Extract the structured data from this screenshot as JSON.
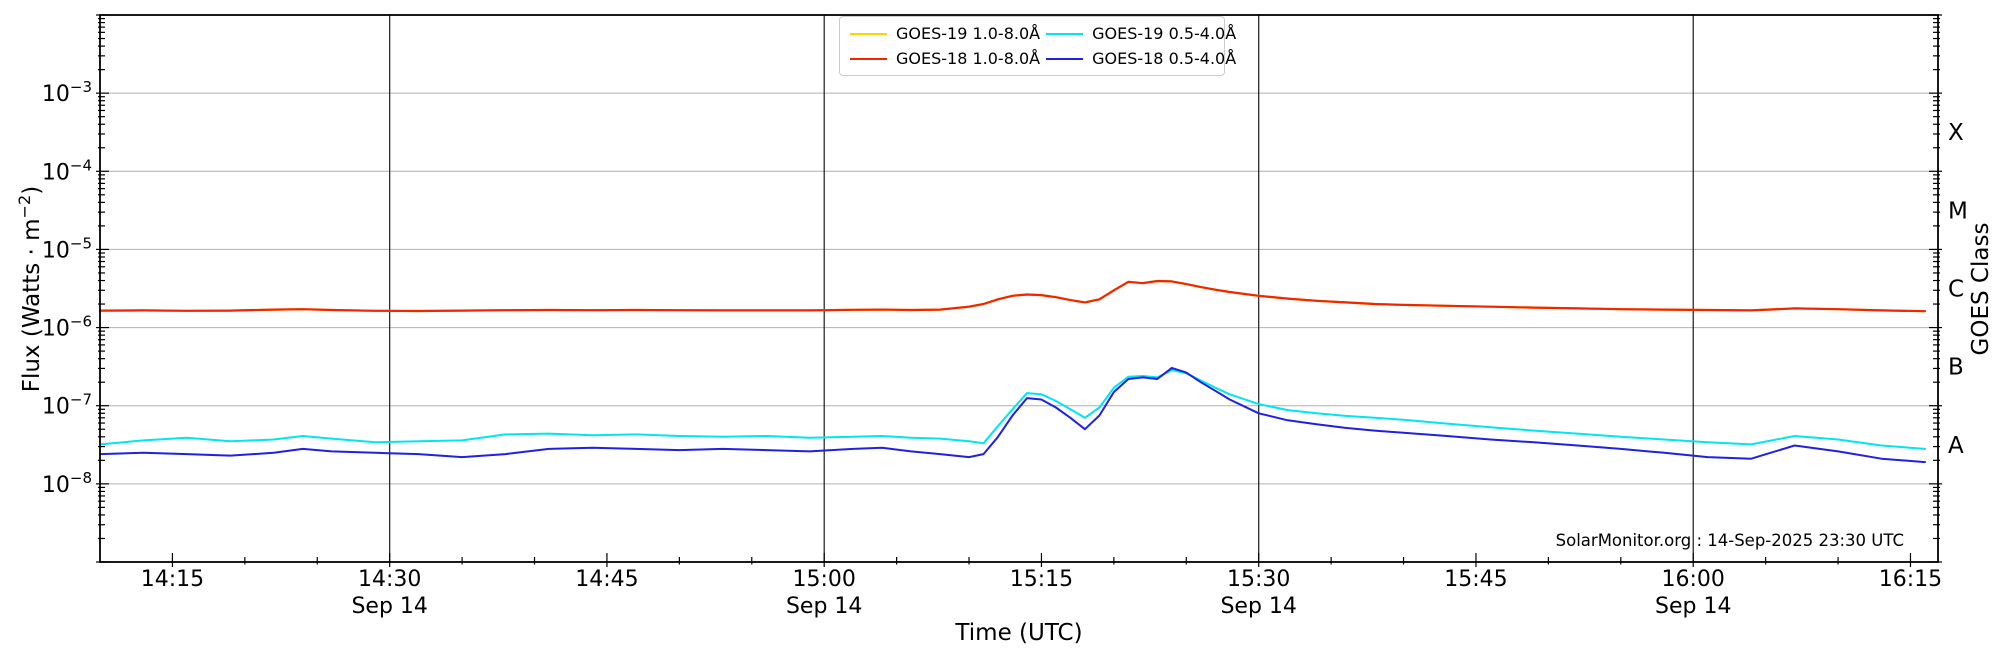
{
  "watermark": "SolarMonitor.org : 14-Sep-2025 23:30 UTC",
  "axes": {
    "x": {
      "label": "Time (UTC)",
      "date_sublabel": "Sep 14",
      "minor_step_minutes": 5,
      "vlines_minutes": [
        30,
        60,
        90,
        120
      ],
      "ticks": [
        {
          "m": 15,
          "label": "14:15"
        },
        {
          "m": 30,
          "label": "14:30",
          "sublabel": "Sep 14"
        },
        {
          "m": 45,
          "label": "14:45"
        },
        {
          "m": 60,
          "label": "15:00",
          "sublabel": "Sep 14"
        },
        {
          "m": 75,
          "label": "15:15"
        },
        {
          "m": 90,
          "label": "15:30",
          "sublabel": "Sep 14"
        },
        {
          "m": 105,
          "label": "15:45"
        },
        {
          "m": 120,
          "label": "16:00",
          "sublabel": "Sep 14"
        },
        {
          "m": 135,
          "label": "16:15"
        }
      ]
    },
    "y_left": {
      "label_prefix": "Flux (Watts · m",
      "label_sup": "−2",
      "label_suffix": ")",
      "ticks": [
        {
          "value": 0.001,
          "sup": "−3"
        },
        {
          "value": 0.0001,
          "sup": "−4"
        },
        {
          "value": 1e-05,
          "sup": "−5"
        },
        {
          "value": 1e-06,
          "sup": "−6"
        },
        {
          "value": 1e-07,
          "sup": "−7"
        },
        {
          "value": 1e-08,
          "sup": "−8"
        }
      ]
    },
    "y_right": {
      "label": "GOES Class",
      "classes": [
        {
          "letter": "X",
          "value": 0.0003162
        },
        {
          "letter": "M",
          "value": 3.162e-05
        },
        {
          "letter": "C",
          "value": 3.162e-06
        },
        {
          "letter": "B",
          "value": 3.162e-07
        },
        {
          "letter": "A",
          "value": 3.162e-08
        }
      ]
    }
  },
  "legend": {
    "entries": [
      {
        "id": "goes19-long",
        "label": "GOES-19 1.0-8.0Å",
        "color": "#ffd200"
      },
      {
        "id": "goes18-long",
        "label": "GOES-18 1.0-8.0Å",
        "color": "#f32500"
      },
      {
        "id": "goes19-short",
        "label": "GOES-19 0.5-4.0Å",
        "color": "#00e6ef"
      },
      {
        "id": "goes18-short",
        "label": "GOES-18 0.5-4.0Å",
        "color": "#2020e0"
      }
    ]
  },
  "chart_data": {
    "type": "line",
    "title": "",
    "xlabel": "Time (UTC)",
    "ylabel": "Flux (Watts · m^−2)",
    "ylabel_right": "GOES Class",
    "grid": "horizontal-decades",
    "legend_position": "top-center-inside",
    "x_unit": "minutes after 14:00 UTC on 14-Sep-2025",
    "x_range": [
      10,
      136.9
    ],
    "y_scale": "log",
    "y_log_range": [
      1e-09,
      0.01
    ],
    "x": [
      10,
      13,
      16,
      19,
      22,
      24,
      26,
      29,
      32,
      35,
      38,
      41,
      44,
      47,
      50,
      53,
      56,
      59,
      62,
      64,
      66,
      68,
      70,
      71,
      72,
      73,
      74,
      75,
      76,
      77,
      78,
      79,
      80,
      81,
      82,
      83,
      84,
      85,
      86,
      87,
      88,
      90,
      92,
      94,
      96,
      98,
      100,
      103,
      106,
      109,
      112,
      115,
      118,
      121,
      124,
      127,
      130,
      133,
      136
    ],
    "series": [
      {
        "id": "goes19-long",
        "name": "GOES-19 1.0-8.0Å",
        "color": "#ffd200",
        "width": 2.2,
        "values": [
          1.65e-06,
          1.66e-06,
          1.64e-06,
          1.65e-06,
          1.7e-06,
          1.72e-06,
          1.68e-06,
          1.64e-06,
          1.63e-06,
          1.65e-06,
          1.67e-06,
          1.68e-06,
          1.67e-06,
          1.68e-06,
          1.67e-06,
          1.66e-06,
          1.66e-06,
          1.66e-06,
          1.69e-06,
          1.7e-06,
          1.68e-06,
          1.7e-06,
          1.85e-06,
          2e-06,
          2.3e-06,
          2.55e-06,
          2.65e-06,
          2.6e-06,
          2.45e-06,
          2.25e-06,
          2.1e-06,
          2.3e-06,
          3e-06,
          3.85e-06,
          3.7e-06,
          3.95e-06,
          3.9e-06,
          3.6e-06,
          3.3e-06,
          3.05e-06,
          2.85e-06,
          2.55e-06,
          2.35e-06,
          2.2e-06,
          2.1e-06,
          2e-06,
          1.95e-06,
          1.9e-06,
          1.85e-06,
          1.8e-06,
          1.76e-06,
          1.72e-06,
          1.7e-06,
          1.68e-06,
          1.66e-06,
          1.76e-06,
          1.72e-06,
          1.66e-06,
          1.62e-06
        ]
      },
      {
        "id": "goes18-long",
        "name": "GOES-18 1.0-8.0Å",
        "color": "#f32500",
        "width": 2.2,
        "values": [
          1.65e-06,
          1.66e-06,
          1.64e-06,
          1.65e-06,
          1.7e-06,
          1.72e-06,
          1.68e-06,
          1.64e-06,
          1.63e-06,
          1.65e-06,
          1.67e-06,
          1.68e-06,
          1.67e-06,
          1.68e-06,
          1.67e-06,
          1.66e-06,
          1.66e-06,
          1.66e-06,
          1.69e-06,
          1.7e-06,
          1.68e-06,
          1.7e-06,
          1.85e-06,
          2e-06,
          2.3e-06,
          2.55e-06,
          2.65e-06,
          2.6e-06,
          2.45e-06,
          2.25e-06,
          2.1e-06,
          2.3e-06,
          3e-06,
          3.85e-06,
          3.7e-06,
          3.95e-06,
          3.9e-06,
          3.6e-06,
          3.3e-06,
          3.05e-06,
          2.85e-06,
          2.55e-06,
          2.35e-06,
          2.2e-06,
          2.1e-06,
          2e-06,
          1.95e-06,
          1.9e-06,
          1.85e-06,
          1.8e-06,
          1.76e-06,
          1.72e-06,
          1.7e-06,
          1.68e-06,
          1.66e-06,
          1.76e-06,
          1.72e-06,
          1.66e-06,
          1.62e-06
        ]
      },
      {
        "id": "goes19-short",
        "name": "GOES-19 0.5-4.0Å",
        "color": "#00e6ef",
        "width": 2.0,
        "values": [
          3.2e-08,
          3.6e-08,
          3.9e-08,
          3.5e-08,
          3.7e-08,
          4.1e-08,
          3.8e-08,
          3.4e-08,
          3.5e-08,
          3.6e-08,
          4.3e-08,
          4.4e-08,
          4.2e-08,
          4.3e-08,
          4.1e-08,
          4e-08,
          4.1e-08,
          3.9e-08,
          4e-08,
          4.1e-08,
          3.9e-08,
          3.8e-08,
          3.5e-08,
          3.3e-08,
          5.5e-08,
          9e-08,
          1.45e-07,
          1.4e-07,
          1.15e-07,
          9e-08,
          7e-08,
          9.5e-08,
          1.7e-07,
          2.35e-07,
          2.4e-07,
          2.3e-07,
          2.85e-07,
          2.6e-07,
          2.1e-07,
          1.7e-07,
          1.4e-07,
          1.05e-07,
          8.8e-08,
          8e-08,
          7.4e-08,
          7e-08,
          6.6e-08,
          5.9e-08,
          5.3e-08,
          4.8e-08,
          4.4e-08,
          4e-08,
          3.7e-08,
          3.4e-08,
          3.2e-08,
          4.1e-08,
          3.7e-08,
          3.1e-08,
          2.8e-08
        ]
      },
      {
        "id": "goes18-short",
        "name": "GOES-18 0.5-4.0Å",
        "color": "#2020e0",
        "width": 2.0,
        "values": [
          2.4e-08,
          2.5e-08,
          2.4e-08,
          2.3e-08,
          2.5e-08,
          2.8e-08,
          2.6e-08,
          2.5e-08,
          2.4e-08,
          2.2e-08,
          2.4e-08,
          2.8e-08,
          2.9e-08,
          2.8e-08,
          2.7e-08,
          2.8e-08,
          2.7e-08,
          2.6e-08,
          2.8e-08,
          2.9e-08,
          2.6e-08,
          2.4e-08,
          2.2e-08,
          2.4e-08,
          4e-08,
          7.5e-08,
          1.25e-07,
          1.2e-07,
          9.5e-08,
          7e-08,
          5e-08,
          7.5e-08,
          1.5e-07,
          2.2e-07,
          2.3e-07,
          2.2e-07,
          3.05e-07,
          2.65e-07,
          2e-07,
          1.55e-07,
          1.2e-07,
          8e-08,
          6.5e-08,
          5.8e-08,
          5.2e-08,
          4.8e-08,
          4.5e-08,
          4.1e-08,
          3.7e-08,
          3.4e-08,
          3.1e-08,
          2.8e-08,
          2.5e-08,
          2.2e-08,
          2.1e-08,
          3.1e-08,
          2.6e-08,
          2.1e-08,
          1.9e-08
        ]
      }
    ]
  }
}
